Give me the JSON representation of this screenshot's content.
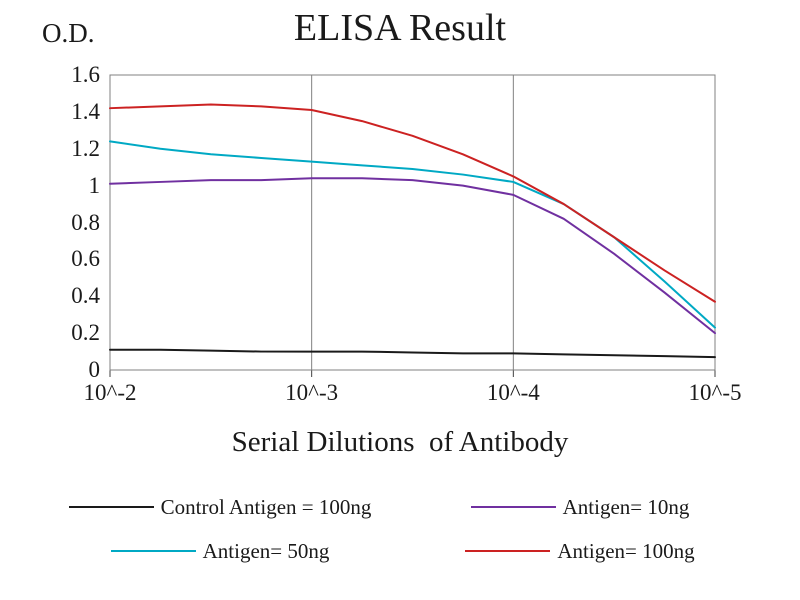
{
  "figure": {
    "title": "ELISA Result",
    "y_axis_label": "O.D.",
    "x_axis_label": "Serial Dilutions  of Antibody"
  },
  "chart_data": {
    "type": "line",
    "title": "ELISA Result",
    "xlabel": "Serial Dilutions  of Antibody",
    "ylabel": "O.D.",
    "x_scale": "log10",
    "x": [
      -2,
      -2.25,
      -2.5,
      -2.75,
      -3,
      -3.25,
      -3.5,
      -3.75,
      -4,
      -4.25,
      -4.5,
      -4.75,
      -5
    ],
    "x_tick_positions": [
      -2,
      -3,
      -4,
      -5
    ],
    "x_tick_labels": [
      "10^-2",
      "10^-3",
      "10^-4",
      "10^-5"
    ],
    "y_tick_labels": [
      "1.6",
      "1.4",
      "1.2",
      "1",
      "0.8",
      "0.6",
      "0.4",
      "0.2",
      "0"
    ],
    "ylim": [
      0,
      1.6
    ],
    "grid": "vertical",
    "grid_color": "#808080",
    "legend_position": "bottom",
    "series": [
      {
        "name": "Control Antigen = 100ng",
        "color": "#1a1a1a",
        "values": [
          0.11,
          0.11,
          0.105,
          0.1,
          0.1,
          0.1,
          0.095,
          0.09,
          0.09,
          0.085,
          0.08,
          0.075,
          0.07
        ]
      },
      {
        "name": "Antigen= 10ng",
        "color": "#7030a0",
        "values": [
          1.01,
          1.02,
          1.03,
          1.03,
          1.04,
          1.04,
          1.03,
          1.0,
          0.95,
          0.82,
          0.63,
          0.42,
          0.2
        ]
      },
      {
        "name": "Antigen= 50ng",
        "color": "#00a9c4",
        "values": [
          1.24,
          1.2,
          1.17,
          1.15,
          1.13,
          1.11,
          1.09,
          1.06,
          1.02,
          0.9,
          0.72,
          0.48,
          0.23
        ]
      },
      {
        "name": "Antigen= 100ng",
        "color": "#cc2222",
        "values": [
          1.42,
          1.43,
          1.44,
          1.43,
          1.41,
          1.35,
          1.27,
          1.17,
          1.05,
          0.9,
          0.72,
          0.54,
          0.37
        ]
      }
    ]
  }
}
